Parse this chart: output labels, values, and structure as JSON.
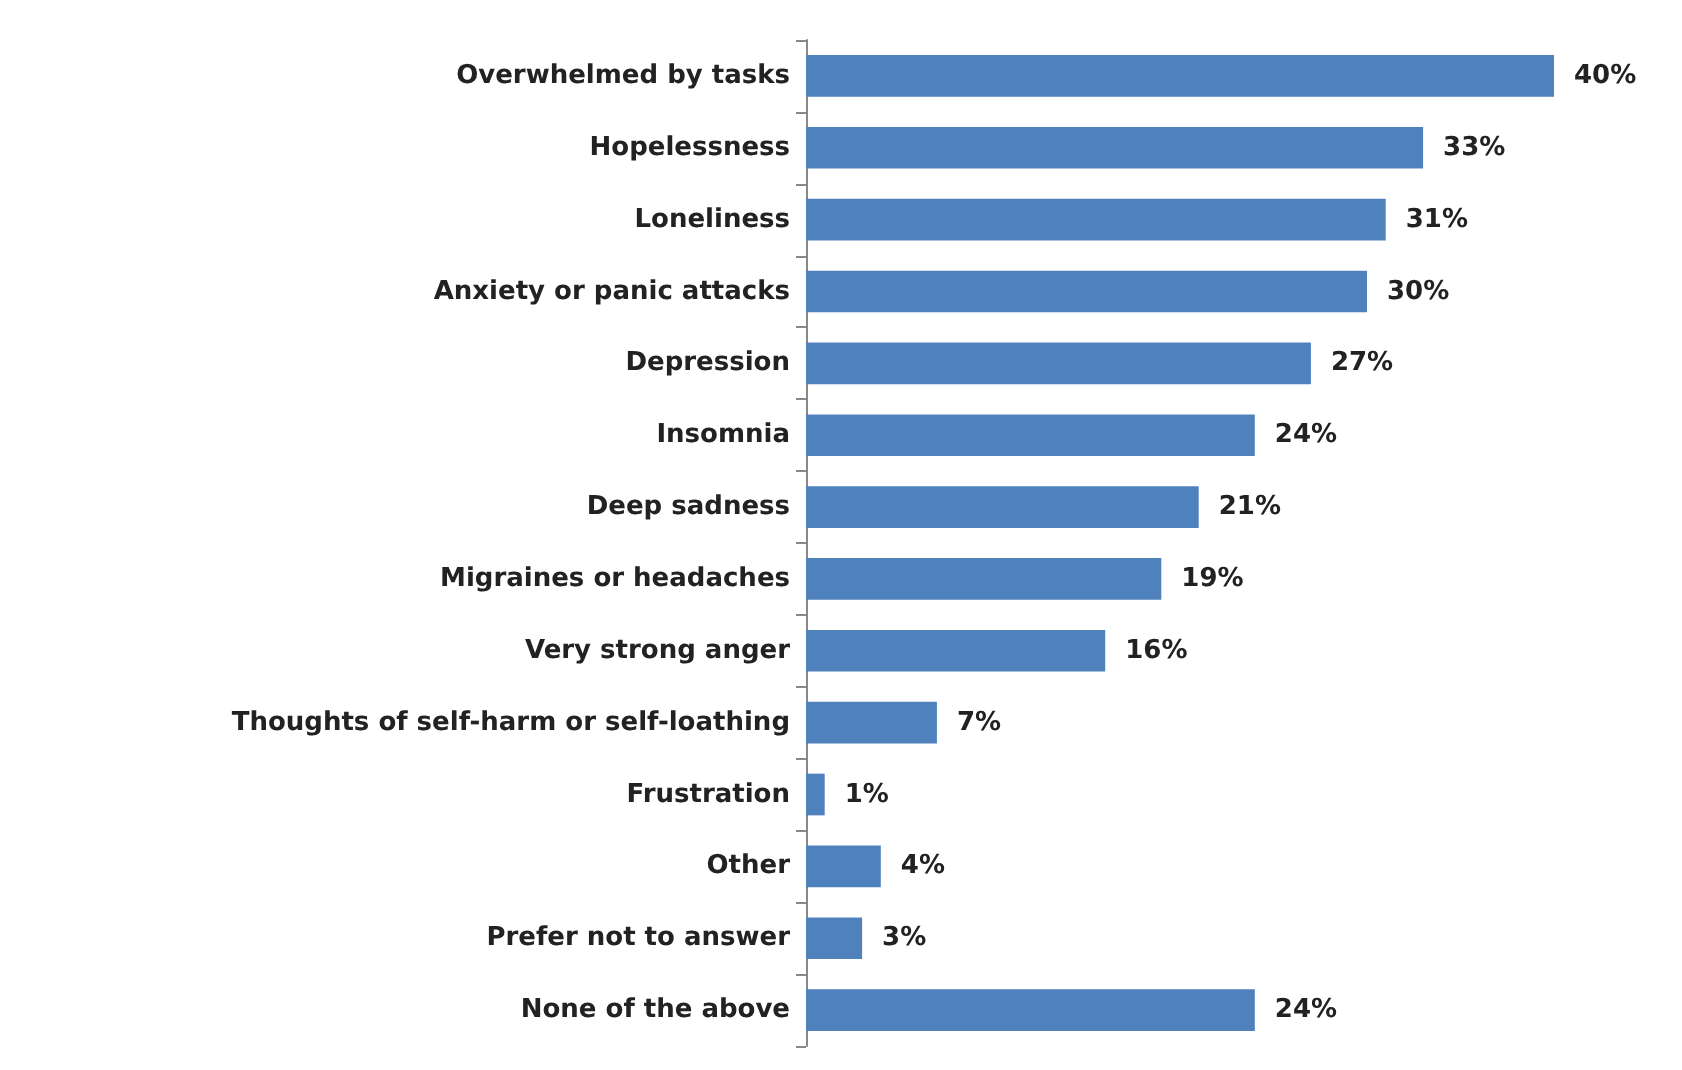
{
  "chart_data": {
    "type": "bar",
    "orientation": "horizontal",
    "categories": [
      "Overwhelmed by tasks",
      "Hopelessness",
      "Loneliness",
      "Anxiety or panic attacks",
      "Depression",
      "Insomnia",
      "Deep sadness",
      "Migraines or headaches",
      "Very strong anger",
      "Thoughts of self-harm or self-loathing",
      "Frustration",
      "Other",
      "Prefer not to answer",
      "None of the above"
    ],
    "values": [
      40,
      33,
      31,
      30,
      27,
      24,
      21,
      19,
      16,
      7,
      1,
      4,
      3,
      24
    ],
    "value_labels": [
      "40%",
      "33%",
      "31%",
      "30%",
      "27%",
      "24%",
      "21%",
      "19%",
      "16%",
      "7%",
      "1%",
      "4%",
      "3%",
      "24%"
    ],
    "color": "#4f81bd"
  }
}
